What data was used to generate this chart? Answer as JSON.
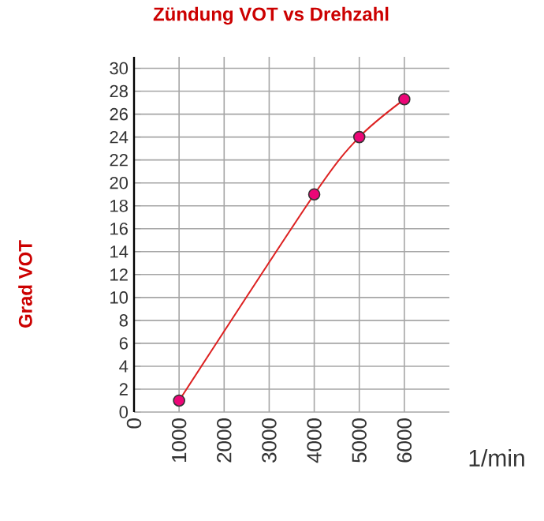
{
  "chart_data": {
    "type": "line",
    "title": "Zündung VOT vs Drehzahl",
    "xlabel": "1/min",
    "ylabel": "Grad VOT",
    "x": [
      1000,
      4000,
      5000,
      6000
    ],
    "series": [
      {
        "color": "#dd2222",
        "values": [
          1,
          19,
          24,
          27.3
        ]
      }
    ],
    "xlim": [
      0,
      7000
    ],
    "xticks": [
      0,
      1000,
      2000,
      3000,
      4000,
      5000,
      6000
    ],
    "ylim": [
      0,
      31
    ],
    "yticks": [
      0,
      2,
      4,
      6,
      8,
      10,
      12,
      14,
      16,
      18,
      20,
      22,
      24,
      26,
      28,
      30
    ],
    "grid": true,
    "marker": "circle",
    "line_style": "solid"
  }
}
